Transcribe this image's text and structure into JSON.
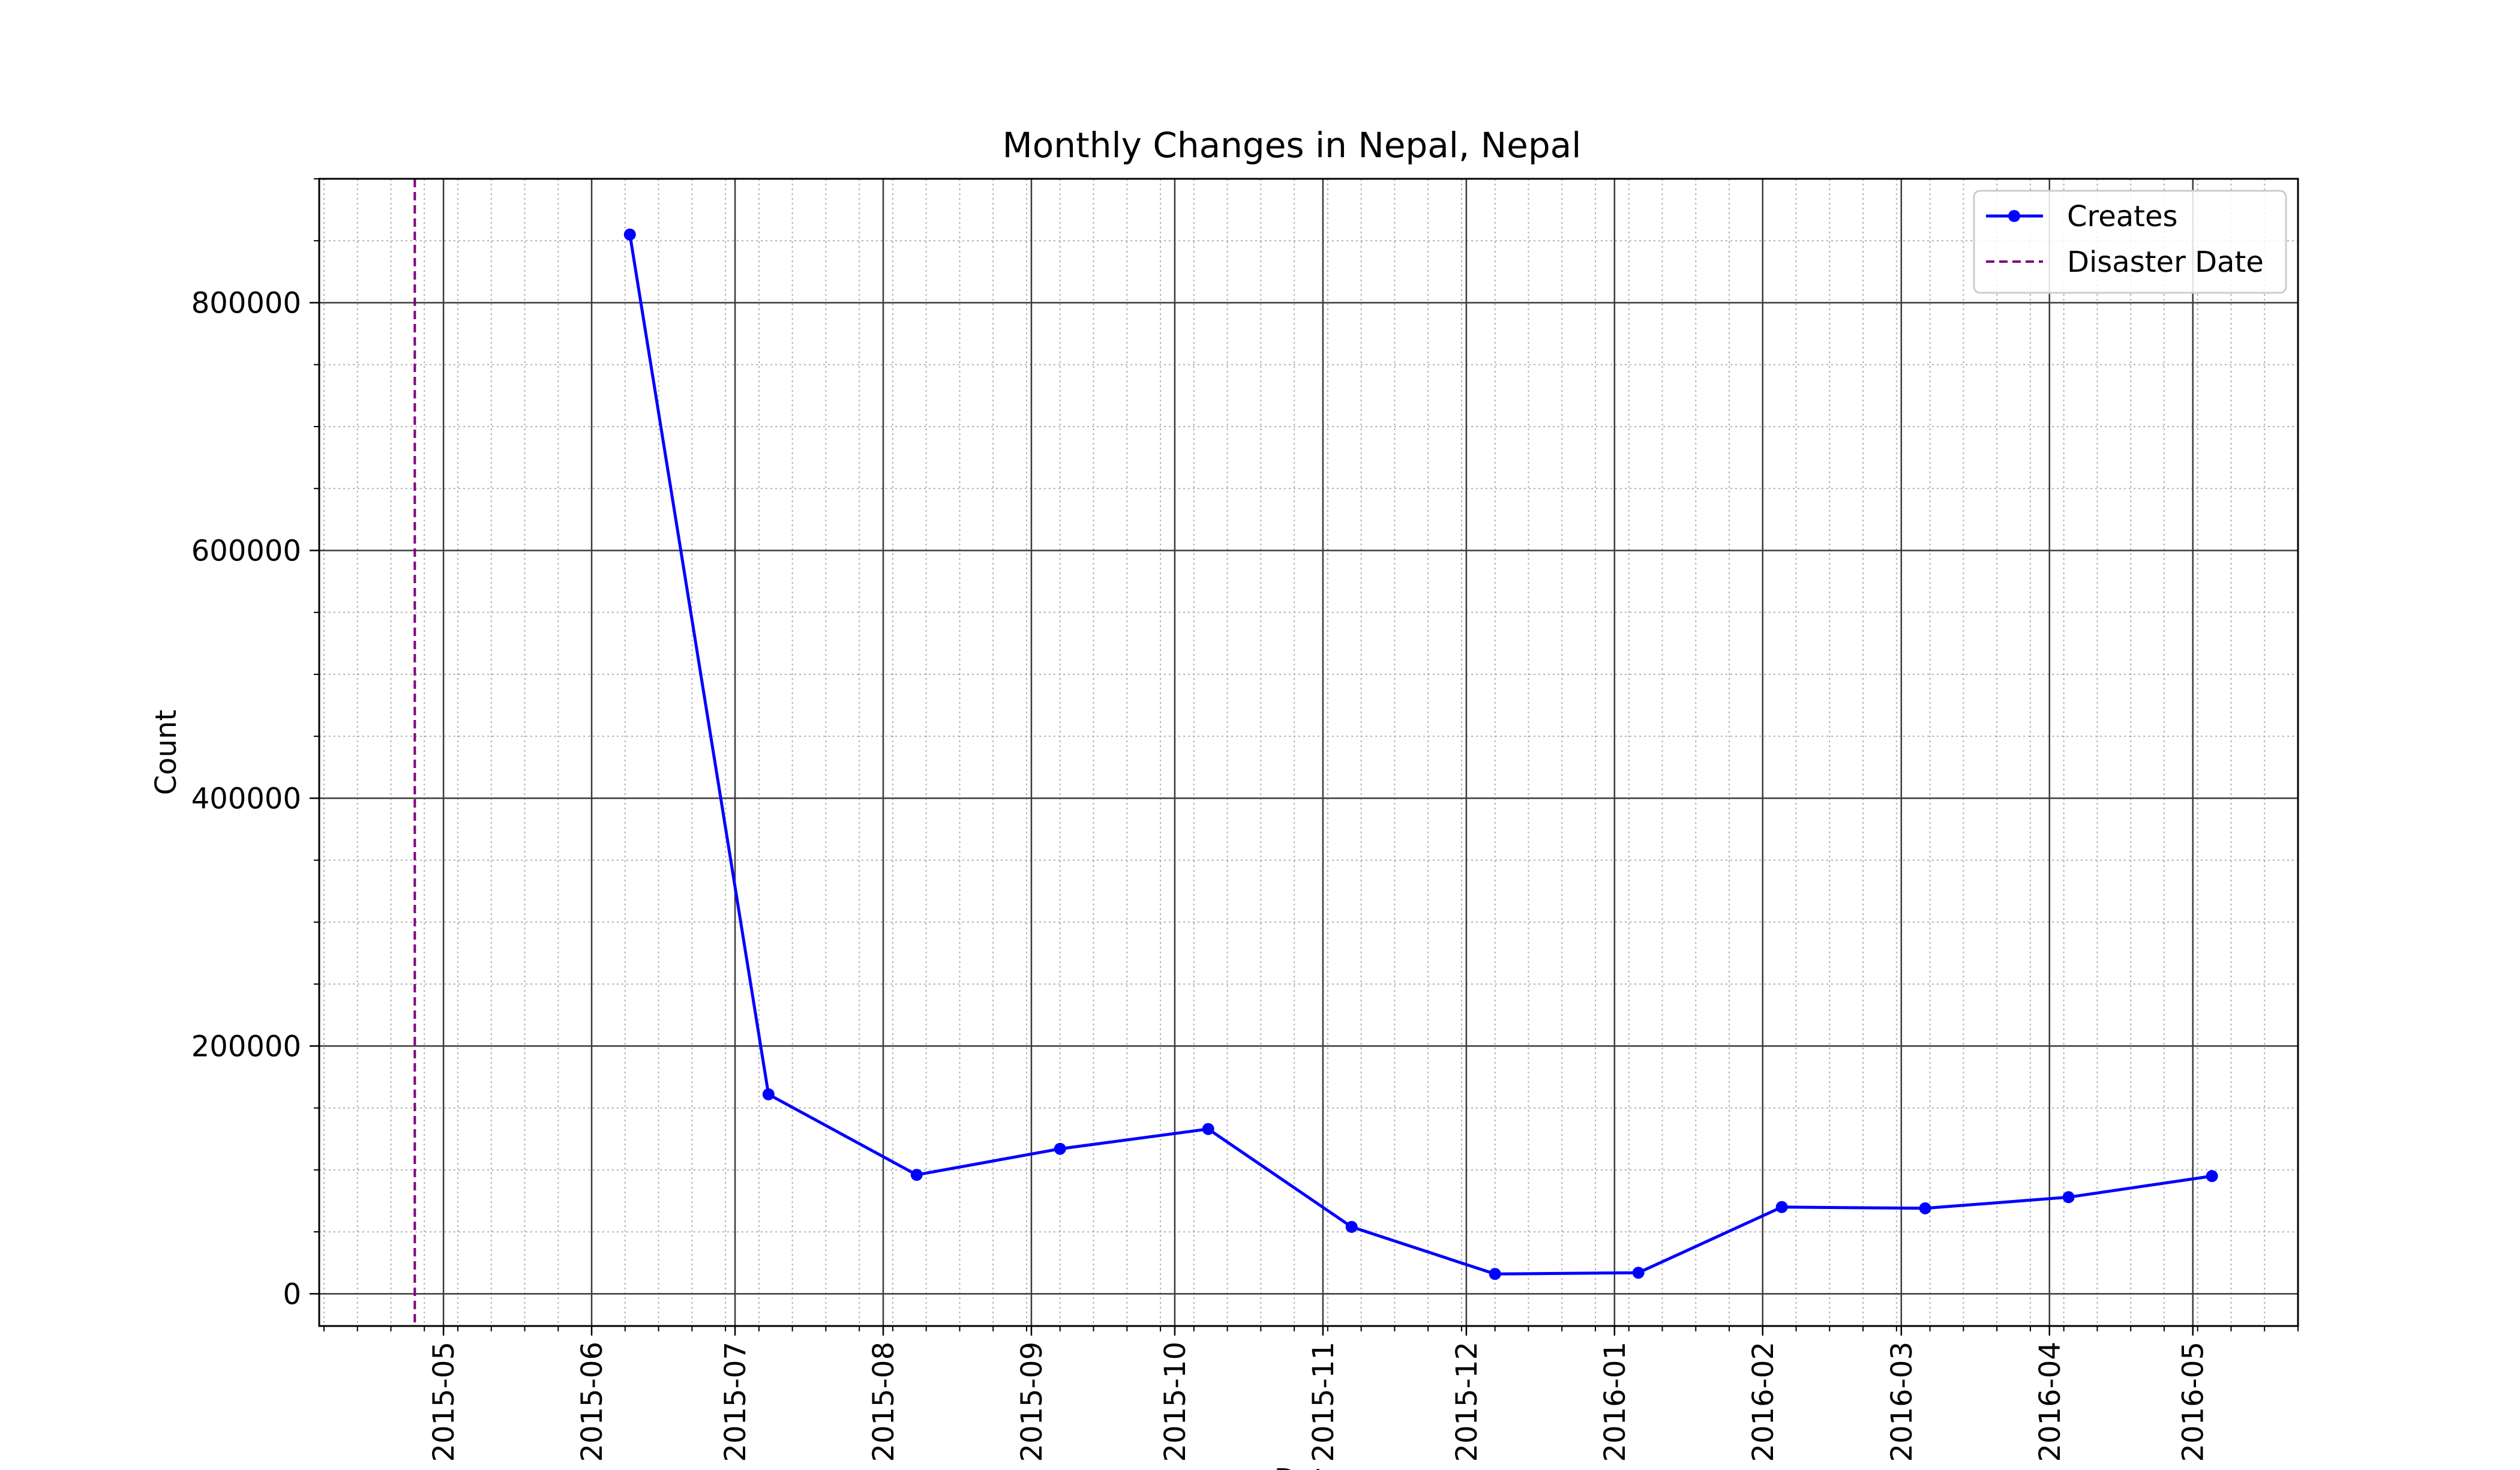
{
  "chart_data": {
    "type": "line",
    "title": "Monthly Changes in Nepal, Nepal",
    "xlabel": "Date",
    "ylabel": "Count",
    "x_ticks": [
      "2015-05",
      "2015-06",
      "2015-07",
      "2015-08",
      "2015-09",
      "2015-10",
      "2015-11",
      "2015-12",
      "2016-01",
      "2016-02",
      "2016-03",
      "2016-04",
      "2016-05"
    ],
    "x_range": [
      "2015-04-05",
      "2016-05-23"
    ],
    "y_ticks": [
      0,
      200000,
      400000,
      600000,
      800000
    ],
    "ylim": [
      -26000,
      900000
    ],
    "grid": {
      "major": true,
      "minor": true,
      "minor_style": "dotted"
    },
    "legend": {
      "placement": "top-right"
    },
    "series": [
      {
        "name": "Creates",
        "color": "#0000ff",
        "marker": "circle",
        "x": [
          "2015-06-09",
          "2015-07-08",
          "2015-08-08",
          "2015-09-07",
          "2015-10-08",
          "2015-11-07",
          "2015-12-07",
          "2016-01-06",
          "2016-02-05",
          "2016-03-06",
          "2016-04-05",
          "2016-05-05"
        ],
        "y": [
          855000,
          161000,
          96000,
          117000,
          133000,
          54000,
          16000,
          17000,
          70000,
          69000,
          78000,
          95000
        ]
      }
    ],
    "reference_lines": [
      {
        "name": "Disaster Date",
        "x": "2015-04-25",
        "color": "#800080",
        "style": "dashed"
      }
    ]
  }
}
